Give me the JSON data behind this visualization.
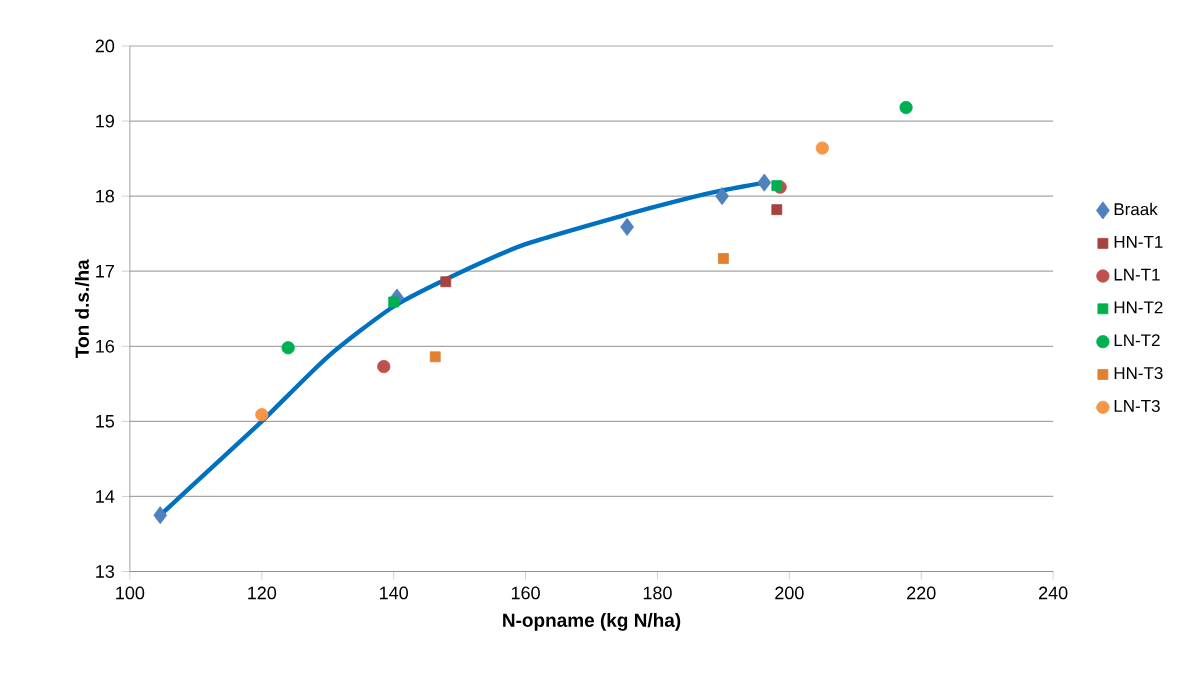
{
  "chart_data": {
    "type": "scatter",
    "xlabel": "N-opname (kg N/ha)",
    "ylabel": "Ton d.s./ha",
    "xlim": [
      100,
      240
    ],
    "xticks": [
      100,
      120,
      140,
      160,
      180,
      200,
      220,
      240
    ],
    "ylim": [
      13,
      20
    ],
    "yticks": [
      13,
      14,
      15,
      16,
      17,
      18,
      19,
      20
    ],
    "grid": "y",
    "legend": "right",
    "series": [
      {
        "name": "Braak",
        "color": "#4f81bd",
        "marker": "diamond",
        "x": [
          104.6,
          140.5,
          175.4,
          189.8,
          196.2
        ],
        "values": [
          13.75,
          16.65,
          17.59,
          18.0,
          18.18
        ]
      },
      {
        "name": "HN-T1",
        "color": "#a5433f",
        "marker": "square",
        "x": [
          147.9,
          198.1
        ],
        "values": [
          16.86,
          17.82
        ]
      },
      {
        "name": "LN-T1",
        "color": "#c0504d",
        "marker": "circle",
        "x": [
          138.5,
          198.6
        ],
        "values": [
          15.73,
          18.12
        ]
      },
      {
        "name": "HN-T2",
        "color": "#00b050",
        "marker": "square",
        "x": [
          140.0,
          198.1
        ],
        "values": [
          16.59,
          18.14
        ]
      },
      {
        "name": "LN-T2",
        "color": "#00b050",
        "marker": "circle",
        "x": [
          124.0,
          217.7
        ],
        "values": [
          15.98,
          19.18
        ]
      },
      {
        "name": "HN-T3",
        "color": "#e08030",
        "marker": "square",
        "x": [
          146.3,
          190.0
        ],
        "values": [
          15.86,
          17.17
        ]
      },
      {
        "name": "LN-T3",
        "color": "#f79646",
        "marker": "circle",
        "x": [
          120.0,
          205.0
        ],
        "values": [
          15.09,
          18.64
        ]
      },
      {
        "type": "line",
        "color": "#0070c0",
        "marker": "none",
        "x": [
          104.6,
          112,
          120,
          130,
          140,
          150,
          160,
          175.5,
          185,
          190,
          196.2
        ],
        "values": [
          13.75,
          14.35,
          15.0,
          15.86,
          16.53,
          16.98,
          17.36,
          17.76,
          17.98,
          18.08,
          18.18
        ]
      }
    ]
  }
}
